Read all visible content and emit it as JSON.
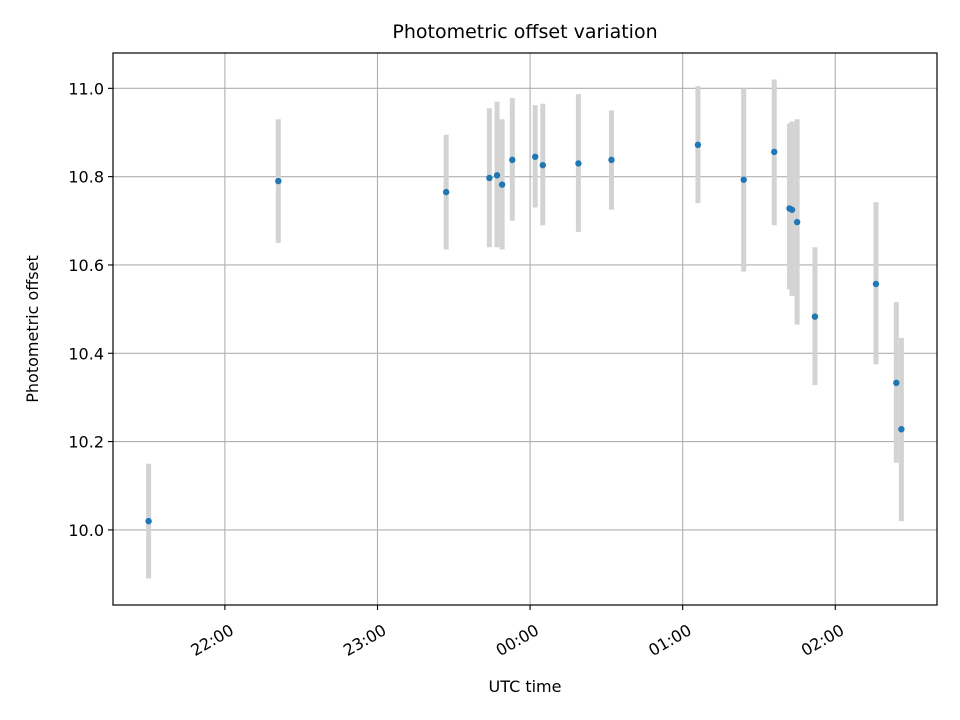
{
  "chart_data": {
    "type": "scatter",
    "title": "Photometric offset variation",
    "xlabel": "UTC time",
    "ylabel": "Photometric offset",
    "x_ticks": [
      "22:00",
      "23:00",
      "00:00",
      "01:00",
      "02:00"
    ],
    "y_ticks": [
      "10.0",
      "10.2",
      "10.4",
      "10.6",
      "10.8",
      "11.0"
    ],
    "xlim": [
      "21:16",
      "02:40"
    ],
    "ylim": [
      9.83,
      11.08
    ],
    "grid": true,
    "colors": {
      "points": "#1f77b4",
      "errorbars": "#d3d3d3",
      "grid": "#b0b0b0"
    },
    "points": [
      {
        "x": "21:30",
        "y": 10.02,
        "lo": 9.89,
        "hi": 10.15
      },
      {
        "x": "22:21",
        "y": 10.79,
        "lo": 10.65,
        "hi": 10.93
      },
      {
        "x": "23:27",
        "y": 10.765,
        "lo": 10.635,
        "hi": 10.895
      },
      {
        "x": "23:44",
        "y": 10.797,
        "lo": 10.64,
        "hi": 10.955
      },
      {
        "x": "23:47",
        "y": 10.803,
        "lo": 10.64,
        "hi": 10.97
      },
      {
        "x": "23:49",
        "y": 10.782,
        "lo": 10.635,
        "hi": 10.93
      },
      {
        "x": "23:53",
        "y": 10.838,
        "lo": 10.7,
        "hi": 10.978
      },
      {
        "x": "00:02",
        "y": 10.845,
        "lo": 10.73,
        "hi": 10.962
      },
      {
        "x": "00:05",
        "y": 10.826,
        "lo": 10.69,
        "hi": 10.965
      },
      {
        "x": "00:19",
        "y": 10.83,
        "lo": 10.675,
        "hi": 10.987
      },
      {
        "x": "00:32",
        "y": 10.838,
        "lo": 10.725,
        "hi": 10.95
      },
      {
        "x": "01:06",
        "y": 10.872,
        "lo": 10.74,
        "hi": 11.005
      },
      {
        "x": "01:24",
        "y": 10.793,
        "lo": 10.585,
        "hi": 11.0
      },
      {
        "x": "01:36",
        "y": 10.856,
        "lo": 10.69,
        "hi": 11.02
      },
      {
        "x": "01:42",
        "y": 10.728,
        "lo": 10.545,
        "hi": 10.92
      },
      {
        "x": "01:43",
        "y": 10.725,
        "lo": 10.53,
        "hi": 10.925
      },
      {
        "x": "01:45",
        "y": 10.697,
        "lo": 10.465,
        "hi": 10.93
      },
      {
        "x": "01:52",
        "y": 10.483,
        "lo": 10.328,
        "hi": 10.64
      },
      {
        "x": "02:16",
        "y": 10.557,
        "lo": 10.375,
        "hi": 10.742
      },
      {
        "x": "02:24",
        "y": 10.333,
        "lo": 10.152,
        "hi": 10.516
      },
      {
        "x": "02:26",
        "y": 10.228,
        "lo": 10.02,
        "hi": 10.435
      }
    ]
  }
}
